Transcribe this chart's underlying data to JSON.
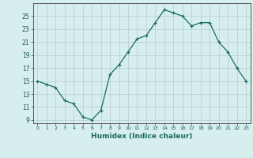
{
  "x": [
    0,
    1,
    2,
    3,
    4,
    5,
    6,
    7,
    8,
    9,
    10,
    11,
    12,
    13,
    14,
    15,
    16,
    17,
    18,
    19,
    20,
    21,
    22,
    23
  ],
  "y": [
    15,
    14.5,
    14,
    12,
    11.5,
    9.5,
    9,
    10.5,
    16,
    17.5,
    19.5,
    21.5,
    22,
    24,
    26,
    25.5,
    25,
    23.5,
    24,
    24,
    21,
    19.5,
    17,
    15
  ],
  "line_color": "#1a6b5e",
  "marker": "+",
  "bg_color": "#d6eeee",
  "grid_color": "#b8cccc",
  "xlabel": "Humidex (Indice chaleur)",
  "yticks": [
    9,
    11,
    13,
    15,
    17,
    19,
    21,
    23,
    25
  ],
  "ylim": [
    8.5,
    27.0
  ],
  "xlim": [
    -0.5,
    23.5
  ]
}
